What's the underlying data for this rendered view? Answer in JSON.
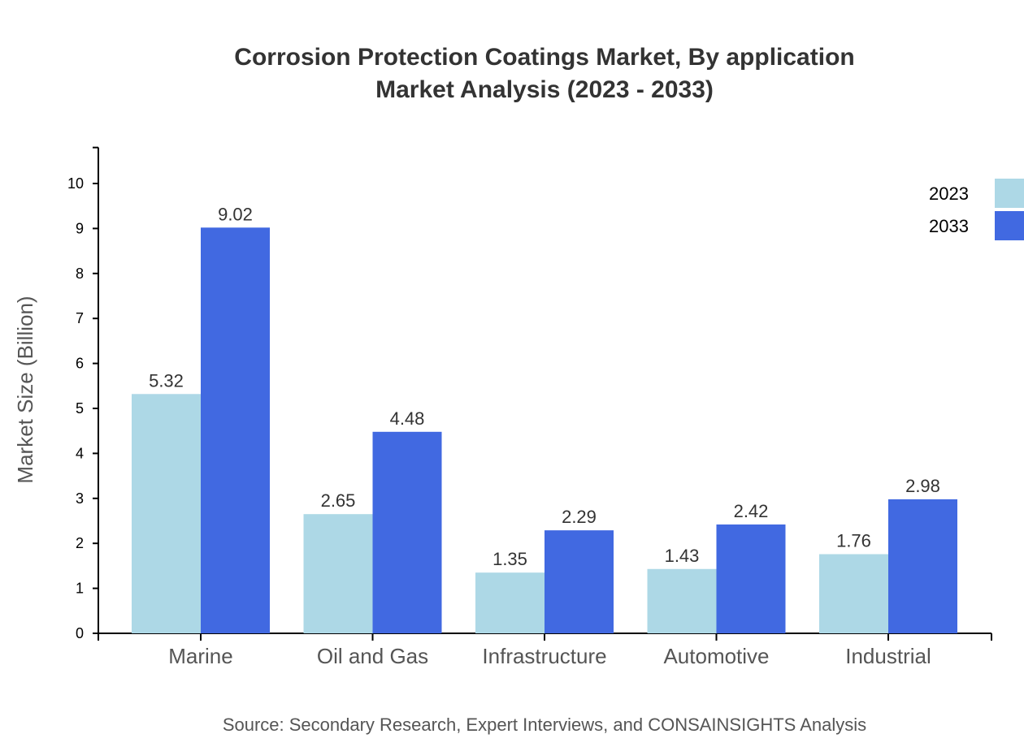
{
  "chart_data": {
    "type": "bar",
    "title": [
      "Corrosion Protection Coatings Market, By application",
      "Market Analysis (2023 - 2033)"
    ],
    "xlabel": "",
    "ylabel": "Market Size (Billion)",
    "ylim": [
      0,
      10.8
    ],
    "yticks": [
      0,
      1,
      2,
      3,
      4,
      5,
      6,
      7,
      8,
      9,
      10
    ],
    "categories": [
      "Marine",
      "Oil and Gas",
      "Infrastructure",
      "Automotive",
      "Industrial"
    ],
    "series": [
      {
        "name": "2023",
        "color": "#add8e6",
        "values": [
          5.32,
          2.65,
          1.35,
          1.43,
          1.76
        ]
      },
      {
        "name": "2033",
        "color": "#4169e1",
        "values": [
          9.02,
          4.48,
          2.29,
          2.42,
          2.98
        ]
      }
    ],
    "legend": "top-right",
    "grid": false,
    "source": "Source: Secondary Research, Expert Interviews, and CONSAINSIGHTS Analysis"
  }
}
